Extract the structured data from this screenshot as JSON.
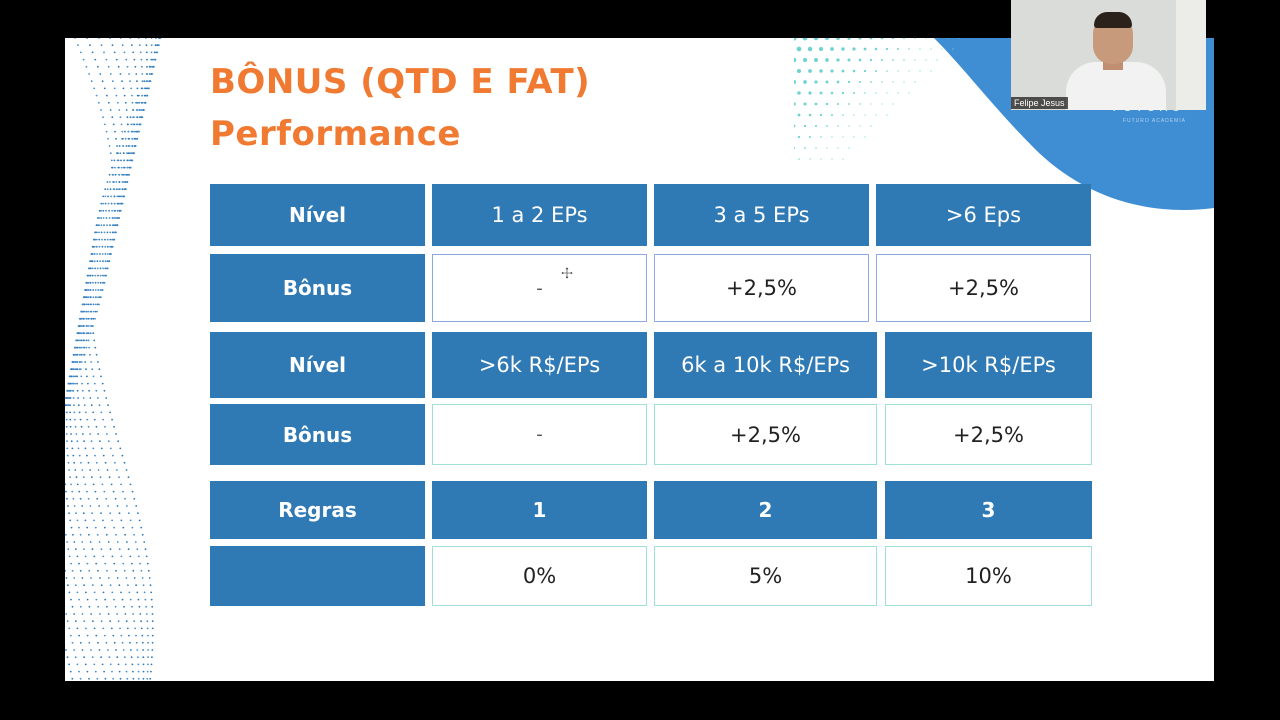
{
  "slide": {
    "title_line1": "BÔNUS (QTD E FAT)",
    "title_line2": "Performance",
    "brand": "FUTURO",
    "brand_sub": "FUTURO ACADEMIA"
  },
  "table": {
    "row1": [
      "Nível",
      "1 a 2 EPs",
      "3 a 5 EPs",
      ">6 Eps"
    ],
    "row2": [
      "Bônus",
      "-",
      "+2,5%",
      "+2,5%"
    ],
    "row3": [
      "Nível",
      ">6k R$/EPs",
      "6k a 10k R$/EPs",
      ">10k R$/EPs"
    ],
    "row4": [
      "Bônus",
      "-",
      "+2,5%",
      "+2,5%"
    ],
    "row5": [
      "Regras",
      "1",
      "2",
      "3"
    ],
    "row6": [
      "",
      "0%",
      "5%",
      "10%"
    ]
  },
  "video": {
    "participant_name": "Felipe Jesus"
  },
  "colors": {
    "accent_orange": "#f07a32",
    "header_blue": "#2f79b5",
    "background": "#000000"
  },
  "icons": [
    "move-cursor-icon",
    "wave-dots-decoration",
    "dots-pattern-decoration"
  ]
}
